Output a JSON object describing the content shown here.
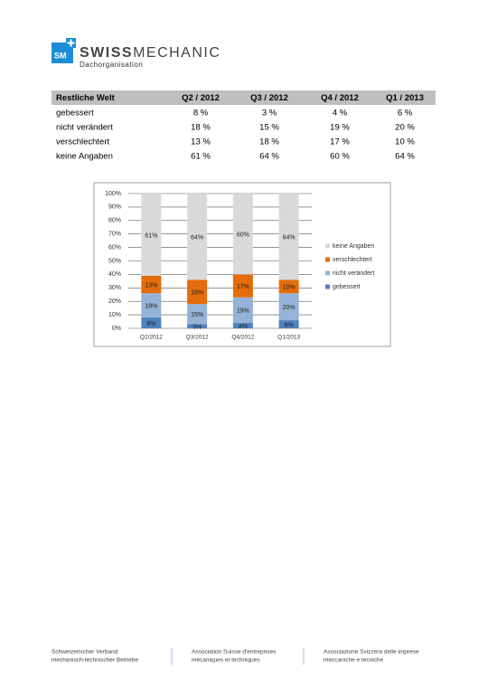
{
  "header": {
    "logo_mark": "SM",
    "brand_1": "SWISS",
    "brand_2": "MECHANIC",
    "subtitle": "Dachorganisation"
  },
  "table": {
    "columns": [
      "Restliche Welt",
      "Q2 / 2012",
      "Q3 / 2012",
      "Q4 / 2012",
      "Q1 / 2013"
    ],
    "rows": [
      [
        "gebessert",
        "8 %",
        "3 %",
        "4 %",
        "6 %"
      ],
      [
        "nicht verändert",
        "18 %",
        "15 %",
        "19 %",
        "20 %"
      ],
      [
        "verschlechtert",
        "13 %",
        "18 %",
        "17 %",
        "10 %"
      ],
      [
        "keine Angaben",
        "61 %",
        "64 %",
        "60 %",
        "64 %"
      ]
    ]
  },
  "chart_data": {
    "type": "stacked_bar",
    "categories": [
      "Q2/2012",
      "Q3/2012",
      "Q4/2012",
      "Q1/2013"
    ],
    "series": [
      {
        "name": "gebessert",
        "color": "#4f81bd",
        "values": [
          8,
          3,
          4,
          6
        ],
        "value_labels": [
          "8%",
          "3%",
          "4%",
          "6%"
        ]
      },
      {
        "name": "nicht verändert",
        "color": "#95b3d7",
        "values": [
          18,
          15,
          19,
          20
        ],
        "value_labels": [
          "18%",
          "15%",
          "19%",
          "20%"
        ]
      },
      {
        "name": "verschlechtert",
        "color": "#e46c0a",
        "values": [
          13,
          18,
          17,
          10
        ],
        "value_labels": [
          "13%",
          "18%",
          "17%",
          "10%"
        ]
      },
      {
        "name": "keine Angaben",
        "color": "#d9d9d9",
        "values": [
          61,
          64,
          60,
          64
        ],
        "value_labels": [
          "61%",
          "64%",
          "60%",
          "64%"
        ]
      }
    ],
    "ylim": [
      0,
      100
    ],
    "yticks": [
      {
        "value": 0,
        "label": "0%"
      },
      {
        "value": 10,
        "label": "10%"
      },
      {
        "value": 20,
        "label": "20%"
      },
      {
        "value": 30,
        "label": "30%"
      },
      {
        "value": 40,
        "label": "40%"
      },
      {
        "value": 50,
        "label": "50%"
      },
      {
        "value": 60,
        "label": "60%"
      },
      {
        "value": 70,
        "label": "70%"
      },
      {
        "value": 80,
        "label": "80%"
      },
      {
        "value": 90,
        "label": "90%"
      },
      {
        "value": 100,
        "label": "100%"
      }
    ],
    "grid": true,
    "legend": "right"
  },
  "footer": {
    "columns": [
      [
        "Schweizerischer Verband",
        "mechanisch-technischer Betriebe"
      ],
      [
        "Association Suisse d'entreprises",
        "mécaniques et techniques"
      ],
      [
        "Associazione Svizzera delle imprese",
        "meccaniche e tecniche"
      ]
    ]
  }
}
